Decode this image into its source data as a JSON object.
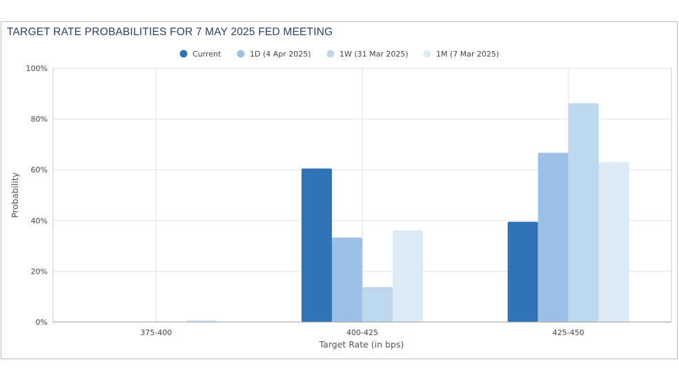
{
  "title": "TARGET RATE PROBABILITIES FOR 7 MAY 2025 FED MEETING",
  "chart_data": {
    "type": "bar",
    "title": "TARGET RATE PROBABILITIES FOR 7 MAY 2025 FED MEETING",
    "xlabel": "Target Rate (in bps)",
    "ylabel": "Probability",
    "categories": [
      "375-400",
      "400-425",
      "425-450"
    ],
    "ylim": [
      0,
      100
    ],
    "yticks": [
      0,
      20,
      40,
      60,
      80,
      100
    ],
    "ytick_labels": [
      "0%",
      "20%",
      "40%",
      "60%",
      "80%",
      "100%"
    ],
    "grid": true,
    "legend_position": "top",
    "series": [
      {
        "name": "Current",
        "color": "#2e74b5",
        "values": [
          0,
          60.5,
          39.5
        ]
      },
      {
        "name": "1D (4 Apr 2025)",
        "color": "#9cc1e6",
        "values": [
          0,
          33.3,
          66.7
        ]
      },
      {
        "name": "1W (31 Mar 2025)",
        "color": "#bdd7ee",
        "values": [
          0,
          13.8,
          86.2
        ]
      },
      {
        "name": "1M (7 Mar 2025)",
        "color": "#ddebf7",
        "values": [
          0.8,
          36.2,
          63.1
        ]
      }
    ]
  }
}
